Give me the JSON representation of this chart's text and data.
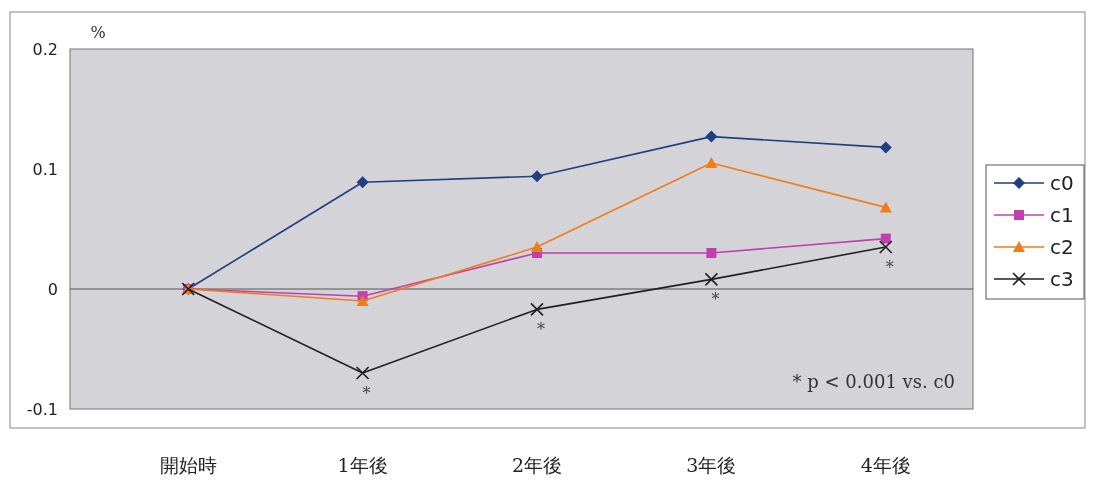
{
  "chart_data": {
    "type": "line",
    "ylabel": "%",
    "categories": [
      "開始時",
      "1年後",
      "2年後",
      "3年後",
      "4年後"
    ],
    "series": [
      {
        "name": "c0",
        "color": "#1f3f7f",
        "marker": "diamond",
        "values": [
          0,
          0.089,
          0.094,
          0.127,
          0.118
        ]
      },
      {
        "name": "c1",
        "color": "#c040b0",
        "marker": "square",
        "values": [
          0,
          -0.006,
          0.03,
          0.03,
          0.042
        ]
      },
      {
        "name": "c2",
        "color": "#ef7d1a",
        "marker": "triangle",
        "values": [
          0,
          -0.01,
          0.035,
          0.105,
          0.068
        ]
      },
      {
        "name": "c3",
        "color": "#202020",
        "marker": "cross",
        "values": [
          0,
          -0.07,
          -0.017,
          0.008,
          0.035
        ]
      }
    ],
    "ylim": [
      -0.1,
      0.2
    ],
    "yticks": [
      -0.1,
      0,
      0.1,
      0.2
    ],
    "ref_lines": [
      {
        "axis": "y",
        "value": 0,
        "color": "#555555"
      }
    ],
    "legend": "right",
    "line_style": "solid",
    "annotations": [
      {
        "text": "*",
        "x": "1年後",
        "y": -0.07
      },
      {
        "text": "*",
        "x": "2年後",
        "y": -0.017
      },
      {
        "text": "*",
        "x": "3年後",
        "y": 0.008
      },
      {
        "text": "*",
        "x": "4年後",
        "y": 0.035
      },
      "* p < 0.001 vs. c0"
    ]
  }
}
